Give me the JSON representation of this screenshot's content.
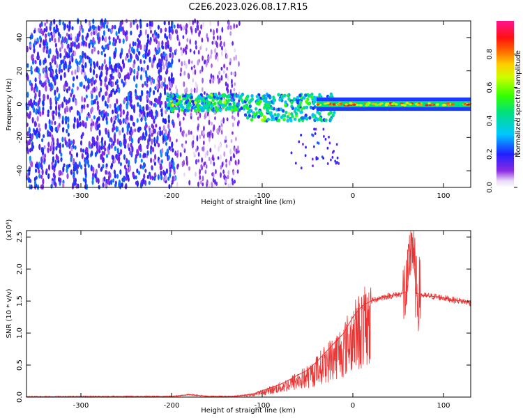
{
  "chart_data": [
    {
      "type": "heatmap",
      "title": "C2E6.2023.026.08.17.R15",
      "xlabel": "Height of straight line (km)",
      "ylabel": "Frequency (Hz)",
      "xlim": [
        -360,
        130
      ],
      "ylim": [
        -50,
        50
      ],
      "x_ticks": [
        "-300",
        "-200",
        "-100",
        "0",
        "100"
      ],
      "y_ticks": [
        "-40",
        "-20",
        "0",
        "20",
        "40"
      ],
      "colorbar": {
        "label": "Normalized spectral amplitude",
        "range": [
          0,
          1
        ],
        "ticks": [
          "0.0",
          "0.2",
          "0.4",
          "0.6",
          "0.8"
        ],
        "colormap": "rainbow (white-purple-blue-cyan-green-yellow-orange-red-magenta)"
      },
      "regions": [
        {
          "x_range": [
            -360,
            -195
          ],
          "freq_range": [
            -50,
            50
          ],
          "amplitude": "low (0.1-0.35), noise speckle"
        },
        {
          "x_range": [
            -195,
            -125
          ],
          "freq_range": [
            -50,
            50
          ],
          "amplitude": "very low, sparse speckle"
        },
        {
          "x_range": [
            -205,
            -20
          ],
          "freq_range": [
            -12,
            8
          ],
          "amplitude": "medium-high (0.3-0.6), signal band near 0 Hz"
        },
        {
          "x_range": [
            -40,
            130
          ],
          "freq_range": [
            -3,
            3
          ],
          "amplitude": "high (0.6-1.0), narrow line at 0 Hz"
        }
      ]
    },
    {
      "type": "line",
      "xlabel": "Height of straight line (km)",
      "ylabel": "SNR (10 * v/v)",
      "y_multiplier": "(x10⁴)",
      "xlim": [
        -360,
        130
      ],
      "ylim": [
        0,
        2.6
      ],
      "x_ticks": [
        "-300",
        "-200",
        "-100",
        "0",
        "100"
      ],
      "y_ticks": [
        "0.0",
        "0.5",
        "1.0",
        "1.5",
        "2.0",
        "2.5"
      ],
      "color": "#ee3333",
      "series": [
        {
          "x": [
            -360,
            -200,
            -180,
            -160,
            -130,
            -110,
            -100,
            -90,
            -80,
            -70,
            -60,
            -50,
            -40,
            -30,
            -20,
            -10,
            0,
            10,
            20,
            30,
            40,
            50,
            60,
            65,
            70,
            80,
            90,
            100,
            110,
            120,
            130
          ],
          "y": [
            0.005,
            0.01,
            0.04,
            0.01,
            0.01,
            0.05,
            0.1,
            0.15,
            0.2,
            0.27,
            0.35,
            0.42,
            0.55,
            0.7,
            0.85,
            1.0,
            1.25,
            1.42,
            1.5,
            1.55,
            1.58,
            1.6,
            1.65,
            2.55,
            1.62,
            1.58,
            1.57,
            1.55,
            1.52,
            1.5,
            1.47
          ]
        }
      ]
    }
  ]
}
